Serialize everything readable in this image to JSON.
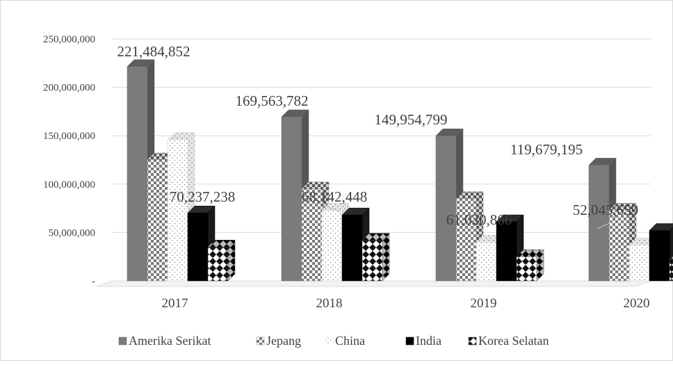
{
  "chart_data": {
    "type": "bar",
    "title": "",
    "xlabel": "",
    "ylabel": "",
    "categories": [
      "2017",
      "2018",
      "2019",
      "2020"
    ],
    "ylim": [
      0,
      250000000
    ],
    "yticks": [
      {
        "value": 0,
        "label": "-"
      },
      {
        "value": 50000000,
        "label": "50,000,000"
      },
      {
        "value": 100000000,
        "label": "100,000,000"
      },
      {
        "value": 150000000,
        "label": "150,000,000"
      },
      {
        "value": 200000000,
        "label": "200,000,000"
      },
      {
        "value": 250000000,
        "label": "250,000,000"
      }
    ],
    "grid": true,
    "legend_position": "bottom",
    "series": [
      {
        "name": "Amerika Serikat",
        "fill": "solid-gray",
        "values": [
          221484852,
          169563782,
          149954799,
          119679195
        ],
        "data_labels": [
          "221,484,852",
          "169,563,782",
          "149,954,799",
          "119,679,195"
        ]
      },
      {
        "name": "Jepang",
        "fill": "checker",
        "values": [
          125000000,
          95000000,
          85000000,
          73000000
        ]
      },
      {
        "name": "China",
        "fill": "dotted",
        "values": [
          146000000,
          73000000,
          40000000,
          37000000
        ]
      },
      {
        "name": "India",
        "fill": "solid-black",
        "values": [
          70237238,
          68142448,
          61020866,
          52045659
        ],
        "data_labels": [
          "70,237,238",
          "68,142,448",
          "61,020,866",
          "52,045,659"
        ]
      },
      {
        "name": "Korea Selatan",
        "fill": "diamond",
        "values": [
          35000000,
          42000000,
          25000000,
          22000000
        ]
      }
    ]
  }
}
